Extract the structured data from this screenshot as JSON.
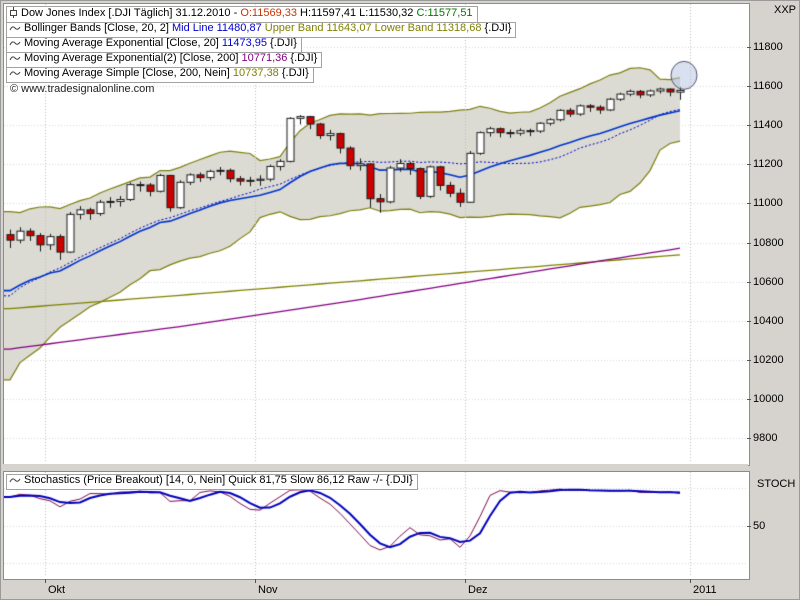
{
  "legend": {
    "instrument": {
      "prefix": "Dow Jones Index [.DJI  Täglich] 31.12.2010 - ",
      "open": "O:11569,33",
      "highlow": " H:11597,41 L:11530,32 ",
      "close": "C:11577,51"
    },
    "bollinger": {
      "prefix": "Bollinger Bands [Close, 20, 2] ",
      "mid": "Mid Line 11480,87 ",
      "upper": "Upper Band 11643,07 ",
      "lower": "Lower Band 11318,68 ",
      "suffix": "{.DJI}"
    },
    "ema20": {
      "prefix": "Moving Average Exponential [Close, 20] ",
      "value": "11473,95 ",
      "suffix": "{.DJI}"
    },
    "ema200": {
      "prefix": "Moving Average Exponential(2) [Close, 200] ",
      "value": "10771,36 ",
      "suffix": "{.DJI}"
    },
    "sma200": {
      "prefix": "Moving Average Simple [Close, 200, Nein] ",
      "value": "10737,38 ",
      "suffix": "{.DJI}"
    },
    "copyright": "© www.tradesignalonline.com",
    "stochastics": {
      "prefix": "Stochastics (Price Breakout) [14, 0, Nein] ",
      "quick": "Quick 81,75 ",
      "slow": "Slow 86,12 ",
      "raw": "Raw -/- ",
      "suffix": "{.DJI}"
    }
  },
  "right_axis": {
    "top_label": "XXP",
    "stoch_label": "STOCH"
  },
  "colors": {
    "up_candle": "#ffffff",
    "down_candle": "#cc0000",
    "candle_border": "#1a1a1a",
    "band_fill": "#dbdbd3",
    "band_line": "#7e7e10",
    "bb_mid": "#0000cc",
    "ema20": "#0033cc",
    "ema200": "#800080",
    "sma200": "#808000",
    "stoch_quick": "#7b0b4e",
    "stoch_slow": "#0000bb",
    "grid_h": "#d6d6d6",
    "grid_v": "#bdbdbd",
    "annotation_fill": "rgba(185,198,226,0.55)",
    "annotation_stroke": "rgba(70,70,100,0.9)"
  },
  "chart_data": {
    "type": "candlestick",
    "title": "Dow Jones Index [.DJI] daily with Bollinger Bands, EMA20, EMA200, SMA200 and Stochastics sub-chart",
    "instrument": {
      "name": "Dow Jones Index",
      "symbol": ".DJI",
      "period": "Täglich",
      "date": "31.12.2010",
      "open": 11569.33,
      "high": 11597.41,
      "low": 11530.32,
      "close": 11577.51
    },
    "indicator_values": {
      "bb_mid": 11480.87,
      "bb_upper": 11643.07,
      "bb_lower": 11318.68,
      "ema20": 11473.95,
      "ema200": 10771.36,
      "sma200": 10737.38,
      "stoch_quick": 81.75,
      "stoch_slow": 86.12
    },
    "y_axis": {
      "min": 9800,
      "max": 11800,
      "step": 200,
      "ticks": [
        11800,
        11600,
        11400,
        11200,
        11000,
        10800,
        10600,
        10400,
        10200,
        10000,
        9800
      ]
    },
    "x_axis": {
      "ticks": [
        {
          "label": "Okt",
          "index": 4
        },
        {
          "label": "Nov",
          "index": 25
        },
        {
          "label": "Dez",
          "index": 46
        },
        {
          "label": "2011",
          "index": 68.5
        }
      ]
    },
    "pre_closes": [
      10015,
      10270,
      10320,
      10269,
      10341,
      10387,
      10415,
      10462,
      10526,
      10544,
      10572,
      10526,
      10594,
      10607,
      10754,
      10739,
      10753,
      10780,
      10860
    ],
    "candles_ohlc": [
      [
        10840,
        10866,
        10772,
        10812
      ],
      [
        10812,
        10878,
        10796,
        10858
      ],
      [
        10858,
        10872,
        10808,
        10835
      ],
      [
        10835,
        10848,
        10754,
        10788
      ],
      [
        10788,
        10844,
        10762,
        10830
      ],
      [
        10830,
        10842,
        10711,
        10751
      ],
      [
        10751,
        10956,
        10746,
        10944
      ],
      [
        10944,
        10986,
        10918,
        10967
      ],
      [
        10967,
        10978,
        10916,
        10948
      ],
      [
        10948,
        11018,
        10936,
        11006
      ],
      [
        11006,
        11032,
        10978,
        11010
      ],
      [
        11010,
        11038,
        10984,
        11020
      ],
      [
        11020,
        11107,
        11012,
        11096
      ],
      [
        11096,
        11112,
        11060,
        11094
      ],
      [
        11094,
        11104,
        11036,
        11062
      ],
      [
        11062,
        11151,
        11056,
        11143
      ],
      [
        11143,
        11146,
        10958,
        10978
      ],
      [
        10978,
        11118,
        10972,
        11108
      ],
      [
        11108,
        11154,
        11094,
        11146
      ],
      [
        11146,
        11158,
        11110,
        11132
      ],
      [
        11132,
        11172,
        11118,
        11164
      ],
      [
        11164,
        11186,
        11144,
        11169
      ],
      [
        11169,
        11178,
        11108,
        11126
      ],
      [
        11126,
        11140,
        11092,
        11114
      ],
      [
        11114,
        11136,
        11088,
        11118
      ],
      [
        11118,
        11144,
        11090,
        11124
      ],
      [
        11124,
        11198,
        11112,
        11189
      ],
      [
        11189,
        11226,
        11168,
        11215
      ],
      [
        11215,
        11441,
        11210,
        11435
      ],
      [
        11435,
        11452,
        11404,
        11444
      ],
      [
        11444,
        11448,
        11380,
        11406
      ],
      [
        11406,
        11412,
        11330,
        11347
      ],
      [
        11347,
        11376,
        11322,
        11357
      ],
      [
        11357,
        11362,
        11256,
        11283
      ],
      [
        11283,
        11292,
        11172,
        11193
      ],
      [
        11193,
        11230,
        11168,
        11202
      ],
      [
        11202,
        11206,
        10978,
        11024
      ],
      [
        11024,
        11048,
        10952,
        11008
      ],
      [
        11008,
        11192,
        11000,
        11181
      ],
      [
        11181,
        11226,
        11162,
        11204
      ],
      [
        11204,
        11212,
        11146,
        11178
      ],
      [
        11178,
        11184,
        11022,
        11036
      ],
      [
        11036,
        11194,
        11028,
        11187
      ],
      [
        11187,
        11192,
        11066,
        11092
      ],
      [
        11092,
        11110,
        11032,
        11052
      ],
      [
        11052,
        11076,
        10982,
        11006
      ],
      [
        11006,
        11268,
        11002,
        11256
      ],
      [
        11256,
        11368,
        11248,
        11362
      ],
      [
        11362,
        11392,
        11342,
        11382
      ],
      [
        11382,
        11388,
        11338,
        11362
      ],
      [
        11362,
        11378,
        11336,
        11359
      ],
      [
        11359,
        11384,
        11346,
        11372
      ],
      [
        11372,
        11382,
        11344,
        11370
      ],
      [
        11370,
        11416,
        11360,
        11410
      ],
      [
        11410,
        11436,
        11398,
        11428
      ],
      [
        11428,
        11482,
        11420,
        11476
      ],
      [
        11476,
        11488,
        11442,
        11457
      ],
      [
        11457,
        11506,
        11448,
        11499
      ],
      [
        11499,
        11508,
        11468,
        11492
      ],
      [
        11492,
        11502,
        11458,
        11478
      ],
      [
        11478,
        11540,
        11472,
        11533
      ],
      [
        11533,
        11566,
        11524,
        11559
      ],
      [
        11559,
        11582,
        11548,
        11573
      ],
      [
        11573,
        11580,
        11538,
        11555
      ],
      [
        11555,
        11582,
        11544,
        11575
      ],
      [
        11575,
        11592,
        11562,
        11585
      ],
      [
        11585,
        11588,
        11548,
        11570
      ],
      [
        11569,
        11597,
        11530,
        11578
      ]
    ],
    "bollinger": {
      "period": 20,
      "deviation": 2
    },
    "ema20_period": 20,
    "ema200_points": [
      [
        0,
        10255
      ],
      [
        17,
        10370
      ],
      [
        34,
        10500
      ],
      [
        51,
        10640
      ],
      [
        67,
        10771
      ]
    ],
    "sma200_points": [
      [
        0,
        10462
      ],
      [
        17,
        10530
      ],
      [
        34,
        10600
      ],
      [
        51,
        10670
      ],
      [
        67,
        10737
      ]
    ],
    "stochastics": {
      "period": 14,
      "grid_levels": [
        100,
        50,
        0
      ],
      "y_ticks": [
        {
          "value": 50,
          "label": "50"
        }
      ],
      "range": [
        0,
        100
      ]
    },
    "annotation": {
      "index": 67,
      "price": 11655
    }
  }
}
